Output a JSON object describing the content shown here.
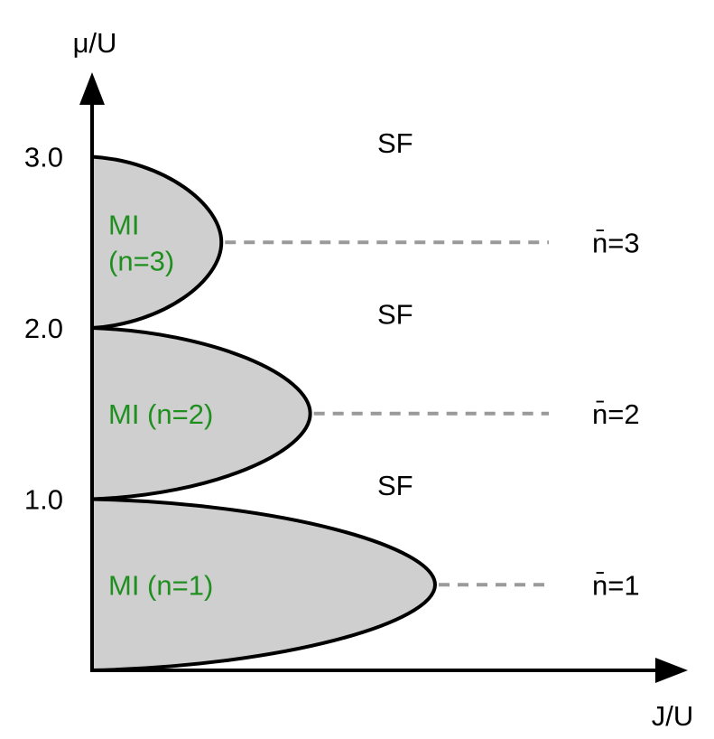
{
  "diagram": {
    "y_axis_label": "μ/U",
    "x_axis_label": "J/U",
    "y_ticks": [
      {
        "label": "1.0",
        "value": 1.0
      },
      {
        "label": "2.0",
        "value": 2.0
      },
      {
        "label": "3.0",
        "value": 3.0
      }
    ],
    "lobes": [
      {
        "lower": 0.0,
        "upper": 1.0,
        "tip_mu": 0.5,
        "tip_j": 1.0,
        "label_lines": [
          "MI (n=1)"
        ]
      },
      {
        "lower": 1.0,
        "upper": 2.0,
        "tip_mu": 1.5,
        "tip_j": 0.636,
        "label_lines": [
          "MI (n=2)"
        ]
      },
      {
        "lower": 2.0,
        "upper": 3.0,
        "tip_mu": 2.5,
        "tip_j": 0.377,
        "label_lines": [
          "MI",
          "(n=3)"
        ]
      }
    ],
    "superfluid_labels": [
      {
        "text": "SF",
        "mu": 1.05
      },
      {
        "text": "SF",
        "mu": 2.05
      },
      {
        "text": "SF",
        "mu": 3.05
      }
    ],
    "density_labels": [
      {
        "text": "n̄=1",
        "mu": 0.5
      },
      {
        "text": "n̄=2",
        "mu": 1.5
      },
      {
        "text": "n̄=3",
        "mu": 2.5
      }
    ],
    "colors": {
      "mott_fill": "#cfcfcf",
      "mott_label": "#1f8f1f",
      "dashed_line": "#9a9a9a",
      "axis": "#000000"
    }
  }
}
